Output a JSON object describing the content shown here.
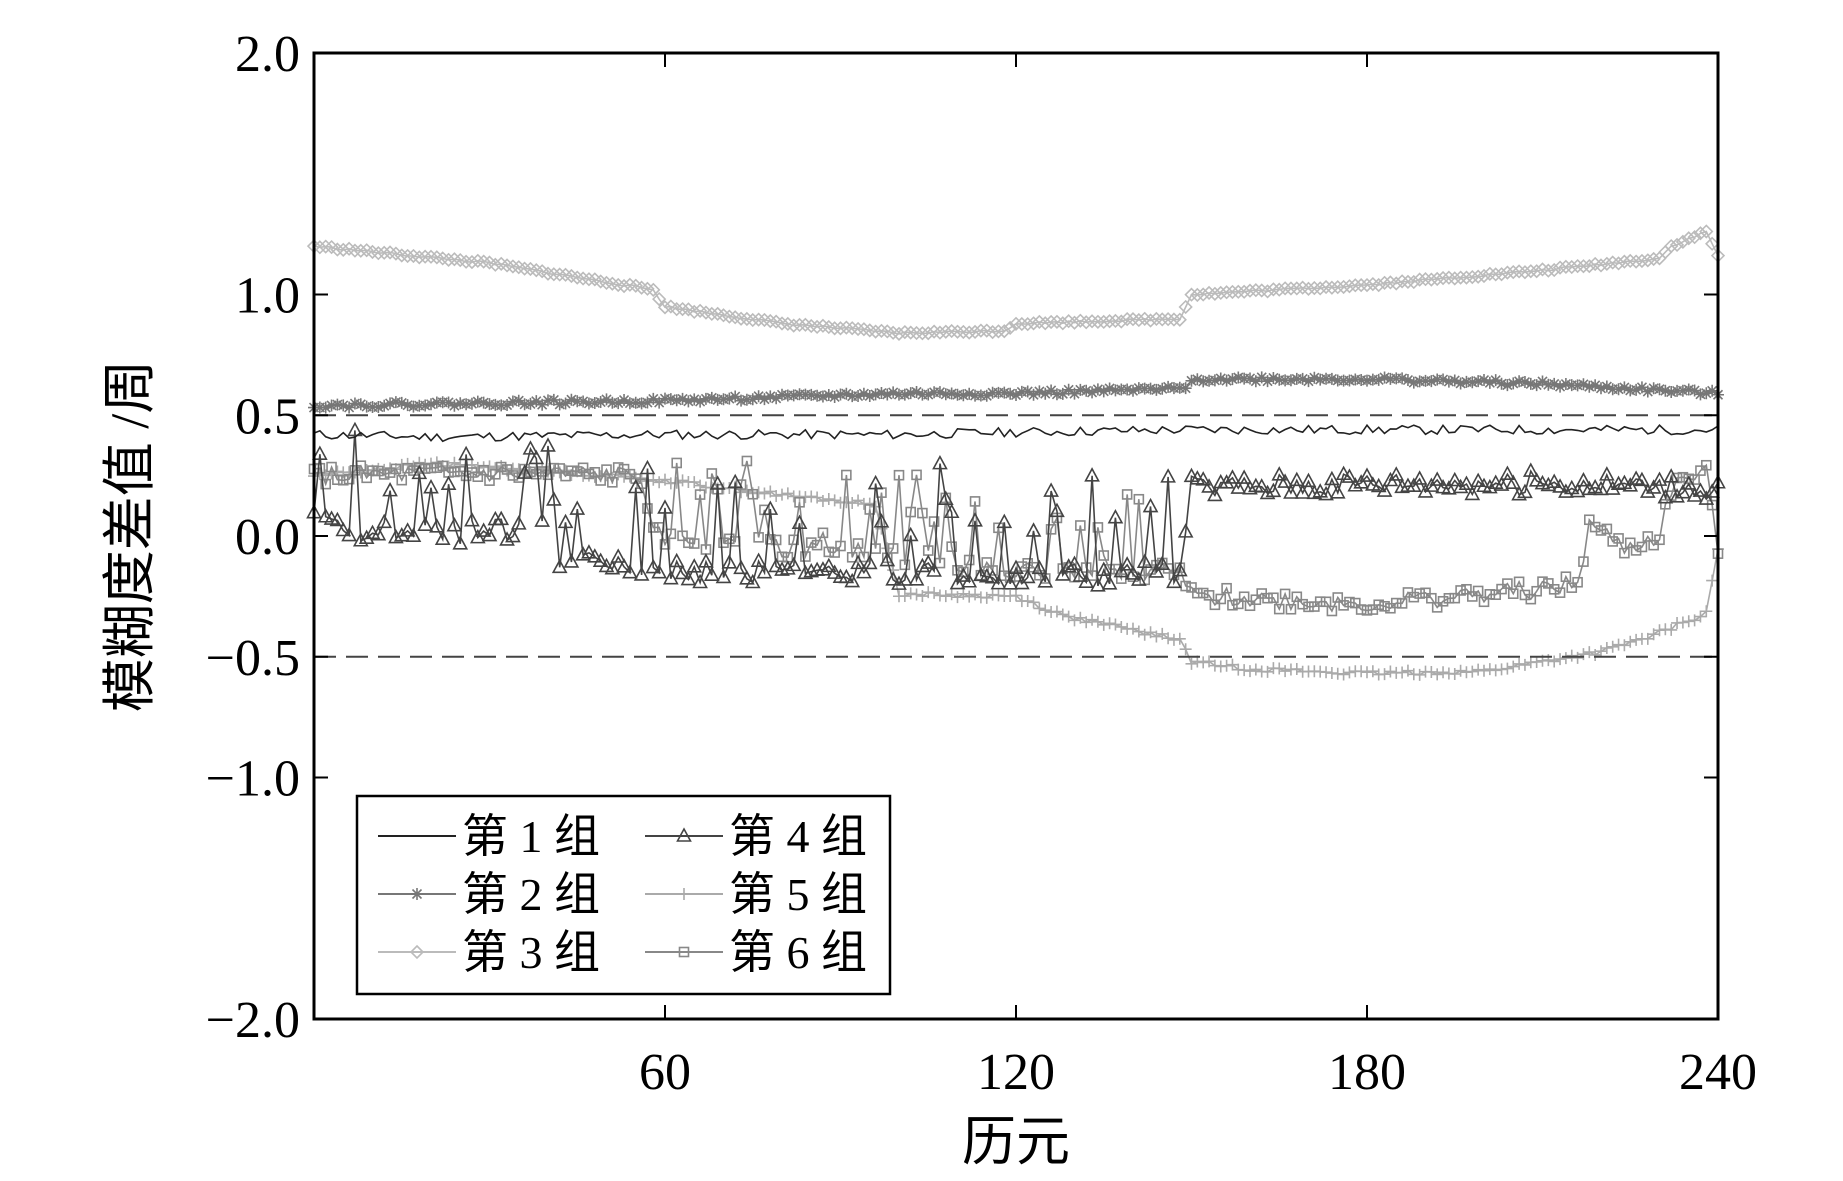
{
  "chart_data": {
    "type": "line",
    "title": "",
    "xlabel": "历元",
    "ylabel": "模糊度差值 /周",
    "xlim": [
      0,
      240
    ],
    "ylim": [
      -2.0,
      2.0
    ],
    "xticks": [
      60,
      120,
      180,
      240
    ],
    "xtick_labels": [
      "60",
      "120",
      "180",
      "240"
    ],
    "yticks": [
      2.0,
      1.0,
      0.5,
      0.0,
      -0.5,
      -1.0,
      -2.0
    ],
    "ytick_labels": [
      "2.0",
      "1.0",
      "0.5",
      "0.0",
      "−0.5",
      "−1.0",
      "−2.0"
    ],
    "reference_lines": [
      0.5,
      -0.5
    ],
    "grid": false,
    "legend_position": "lower-left",
    "series": [
      {
        "name": "第 1 组",
        "color": "#222222",
        "marker": "none",
        "anchors": [
          [
            0,
            0.42
          ],
          [
            20,
            0.41
          ],
          [
            60,
            0.42
          ],
          [
            100,
            0.42
          ],
          [
            120,
            0.43
          ],
          [
            150,
            0.44
          ],
          [
            180,
            0.44
          ],
          [
            210,
            0.44
          ],
          [
            240,
            0.44
          ]
        ],
        "noise": 0.02,
        "seed": 11
      },
      {
        "name": "第 2 组",
        "color": "#777777",
        "marker": "star",
        "anchors": [
          [
            0,
            0.54
          ],
          [
            60,
            0.56
          ],
          [
            100,
            0.59
          ],
          [
            120,
            0.59
          ],
          [
            149,
            0.61
          ],
          [
            150,
            0.65
          ],
          [
            180,
            0.65
          ],
          [
            210,
            0.63
          ],
          [
            240,
            0.59
          ]
        ],
        "noise": 0.01,
        "seed": 22
      },
      {
        "name": "第 3 组",
        "color": "#bbbbbb",
        "marker": "diamond",
        "anchors": [
          [
            0,
            1.2
          ],
          [
            30,
            1.13
          ],
          [
            58,
            1.02
          ],
          [
            60,
            0.95
          ],
          [
            80,
            0.88
          ],
          [
            100,
            0.84
          ],
          [
            118,
            0.85
          ],
          [
            120,
            0.88
          ],
          [
            148,
            0.9
          ],
          [
            150,
            1.0
          ],
          [
            180,
            1.04
          ],
          [
            210,
            1.1
          ],
          [
            230,
            1.15
          ],
          [
            232,
            1.2
          ],
          [
            238,
            1.26
          ],
          [
            240,
            1.16
          ]
        ],
        "noise": 0.005,
        "seed": 33
      },
      {
        "name": "第 4 组",
        "color": "#444444",
        "marker": "triangle",
        "anchors": [
          [
            0,
            0.05
          ],
          [
            20,
            0.0
          ],
          [
            40,
            0.05
          ],
          [
            42,
            -0.1
          ],
          [
            60,
            -0.15
          ],
          [
            100,
            -0.15
          ],
          [
            120,
            -0.18
          ],
          [
            140,
            -0.15
          ],
          [
            148,
            -0.15
          ],
          [
            150,
            0.2
          ],
          [
            180,
            0.22
          ],
          [
            210,
            0.22
          ],
          [
            240,
            0.2
          ]
        ],
        "noise": 0.05,
        "seed": 44
      },
      {
        "name": "第 5 组",
        "color": "#aaaaaa",
        "marker": "plus",
        "anchors": [
          [
            0,
            0.25
          ],
          [
            20,
            0.3
          ],
          [
            40,
            0.27
          ],
          [
            60,
            0.23
          ],
          [
            80,
            0.17
          ],
          [
            96,
            0.13
          ],
          [
            100,
            -0.24
          ],
          [
            120,
            -0.25
          ],
          [
            128,
            -0.33
          ],
          [
            148,
            -0.43
          ],
          [
            150,
            -0.52
          ],
          [
            160,
            -0.55
          ],
          [
            180,
            -0.57
          ],
          [
            200,
            -0.56
          ],
          [
            220,
            -0.48
          ],
          [
            228,
            -0.42
          ],
          [
            238,
            -0.32
          ],
          [
            240,
            -0.05
          ]
        ],
        "noise": 0.01,
        "seed": 55
      },
      {
        "name": "第 6 组",
        "color": "#888888",
        "marker": "square",
        "anchors": [
          [
            0,
            0.25
          ],
          [
            30,
            0.26
          ],
          [
            56,
            0.25
          ],
          [
            58,
            0.0
          ],
          [
            80,
            -0.05
          ],
          [
            100,
            -0.08
          ],
          [
            120,
            -0.15
          ],
          [
            140,
            -0.15
          ],
          [
            148,
            -0.15
          ],
          [
            150,
            -0.25
          ],
          [
            180,
            -0.28
          ],
          [
            210,
            -0.22
          ],
          [
            216,
            -0.2
          ],
          [
            218,
            0.05
          ],
          [
            224,
            -0.05
          ],
          [
            230,
            0.0
          ],
          [
            232,
            0.2
          ],
          [
            238,
            0.28
          ],
          [
            240,
            -0.1
          ]
        ],
        "noise": 0.04,
        "seed": 66
      }
    ]
  }
}
